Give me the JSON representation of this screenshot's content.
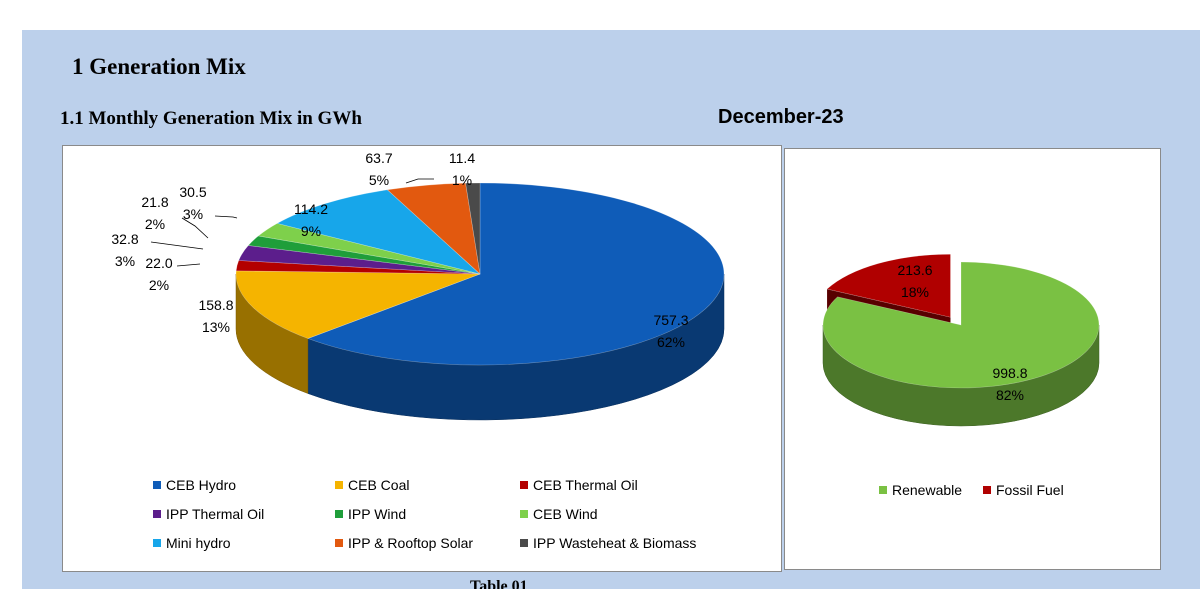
{
  "header": {
    "section_title": "1  Generation Mix",
    "subsection_title": "1.1  Monthly Generation Mix in GWh",
    "period": "December-23",
    "table_caption_fragment": "Table 01"
  },
  "chart_data": [
    {
      "type": "pie",
      "style": "3d",
      "title": "Monthly Generation Mix in GWh",
      "unit": "GWh",
      "slices": [
        {
          "name": "CEB Hydro",
          "value": 757.3,
          "pct_label": "62%",
          "value_label": "757.3",
          "color": "#0f5cb8"
        },
        {
          "name": "CEB Coal",
          "value": 158.8,
          "pct_label": "13%",
          "value_label": "158.8",
          "color": "#f5b400"
        },
        {
          "name": "CEB Thermal Oil",
          "value": 22.0,
          "pct_label": "2%",
          "value_label": "22.0",
          "color": "#b30000"
        },
        {
          "name": "IPP Thermal Oil",
          "value": 32.8,
          "pct_label": "3%",
          "value_label": "32.8",
          "color": "#5c1e8c"
        },
        {
          "name": "IPP Wind",
          "value": 21.8,
          "pct_label": "2%",
          "value_label": "21.8",
          "color": "#1f9e3a"
        },
        {
          "name": "CEB Wind",
          "value": 30.5,
          "pct_label": "3%",
          "value_label": "30.5",
          "color": "#7ed04b"
        },
        {
          "name": "Mini hydro",
          "value": 114.2,
          "pct_label": "9%",
          "value_label": "114.2",
          "color": "#17a6ea"
        },
        {
          "name": "IPP & Rooftop Solar",
          "value": 63.7,
          "pct_label": "5%",
          "value_label": "63.7",
          "color": "#e2590f"
        },
        {
          "name": "IPP Wasteheat & Biomass",
          "value": 11.4,
          "pct_label": "1%",
          "value_label": "11.4",
          "color": "#4a4a4a"
        }
      ],
      "legend_position": "bottom"
    },
    {
      "type": "pie",
      "style": "3d",
      "title": "",
      "unit": "GWh",
      "slices": [
        {
          "name": "Renewable",
          "value": 998.8,
          "pct_label": "82%",
          "value_label": "998.8",
          "color": "#7ac143"
        },
        {
          "name": "Fossil Fuel",
          "value": 213.6,
          "pct_label": "18%",
          "value_label": "213.6",
          "color": "#b00000"
        }
      ],
      "legend_position": "bottom"
    }
  ]
}
